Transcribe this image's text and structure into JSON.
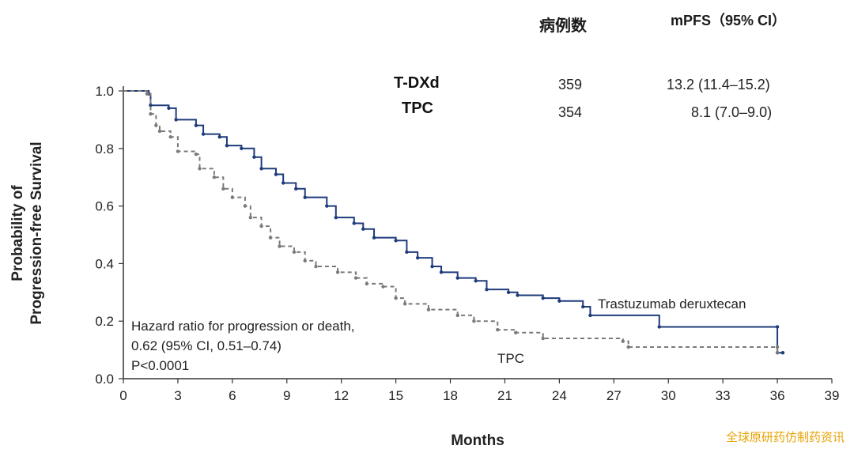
{
  "header": {
    "n_label": "病例数",
    "mpfs_label": "mPFS（95% CI）"
  },
  "arms": [
    {
      "name": "T-DXd",
      "n": "359",
      "mpfs": "13.2 (11.4–15.2)"
    },
    {
      "name": "TPC",
      "n": "354",
      "mpfs": "8.1 (7.0–9.0)"
    }
  ],
  "hazard_ratio": {
    "line1": "Hazard ratio for progression or death,",
    "line2": "0.62 (95% CI, 0.51–0.74)",
    "line3": "P<0.0001"
  },
  "watermark": "全球原研药仿制药资讯",
  "chart_data": {
    "type": "line",
    "title": "",
    "xlabel": "Months",
    "ylabel_line1": "Probability of",
    "ylabel_line2": "Progression-free Survival",
    "xlim": [
      0,
      39
    ],
    "ylim": [
      0,
      1.0
    ],
    "x_ticks": [
      "0",
      "3",
      "6",
      "9",
      "12",
      "15",
      "18",
      "21",
      "24",
      "27",
      "30",
      "33",
      "36",
      "39"
    ],
    "y_ticks": [
      "0.0",
      "0.2",
      "0.4",
      "0.6",
      "0.8",
      "1.0"
    ],
    "series": [
      {
        "name": "Trastuzumab deruxtecan",
        "color": "#1f3b7a",
        "style": "solid",
        "points": [
          [
            0,
            1.0
          ],
          [
            1.4,
            0.99
          ],
          [
            1.5,
            0.95
          ],
          [
            2.5,
            0.94
          ],
          [
            2.9,
            0.9
          ],
          [
            4.0,
            0.88
          ],
          [
            4.4,
            0.85
          ],
          [
            5.3,
            0.84
          ],
          [
            5.7,
            0.81
          ],
          [
            6.5,
            0.8
          ],
          [
            7.2,
            0.77
          ],
          [
            7.6,
            0.73
          ],
          [
            8.4,
            0.71
          ],
          [
            8.8,
            0.68
          ],
          [
            9.5,
            0.66
          ],
          [
            10.0,
            0.63
          ],
          [
            11.2,
            0.6
          ],
          [
            11.7,
            0.56
          ],
          [
            12.7,
            0.54
          ],
          [
            13.2,
            0.52
          ],
          [
            13.8,
            0.49
          ],
          [
            15.0,
            0.48
          ],
          [
            15.6,
            0.44
          ],
          [
            16.2,
            0.42
          ],
          [
            17.0,
            0.39
          ],
          [
            17.5,
            0.37
          ],
          [
            18.4,
            0.35
          ],
          [
            19.4,
            0.34
          ],
          [
            20.0,
            0.31
          ],
          [
            21.2,
            0.3
          ],
          [
            21.7,
            0.29
          ],
          [
            23.1,
            0.28
          ],
          [
            24.0,
            0.27
          ],
          [
            25.3,
            0.25
          ],
          [
            25.7,
            0.22
          ],
          [
            29.5,
            0.18
          ],
          [
            36.0,
            0.18
          ],
          [
            36.0,
            0.09
          ],
          [
            36.3,
            0.09
          ]
        ],
        "label_text": "Trastuzumab deruxtecan"
      },
      {
        "name": "TPC",
        "color": "#7a7a7a",
        "style": "dashed",
        "points": [
          [
            0,
            1.0
          ],
          [
            1.3,
            0.99
          ],
          [
            1.5,
            0.92
          ],
          [
            1.8,
            0.88
          ],
          [
            2.0,
            0.86
          ],
          [
            2.6,
            0.84
          ],
          [
            3.0,
            0.79
          ],
          [
            4.0,
            0.78
          ],
          [
            4.2,
            0.73
          ],
          [
            5.0,
            0.7
          ],
          [
            5.5,
            0.66
          ],
          [
            6.0,
            0.63
          ],
          [
            6.7,
            0.6
          ],
          [
            7.0,
            0.56
          ],
          [
            7.6,
            0.53
          ],
          [
            8.1,
            0.49
          ],
          [
            8.6,
            0.46
          ],
          [
            9.4,
            0.44
          ],
          [
            10.0,
            0.41
          ],
          [
            10.6,
            0.39
          ],
          [
            11.8,
            0.37
          ],
          [
            12.8,
            0.35
          ],
          [
            13.4,
            0.33
          ],
          [
            14.3,
            0.32
          ],
          [
            15.0,
            0.28
          ],
          [
            15.5,
            0.26
          ],
          [
            16.8,
            0.24
          ],
          [
            18.4,
            0.22
          ],
          [
            19.3,
            0.2
          ],
          [
            20.6,
            0.17
          ],
          [
            21.6,
            0.16
          ],
          [
            23.1,
            0.14
          ],
          [
            27.5,
            0.13
          ],
          [
            27.8,
            0.11
          ],
          [
            36.0,
            0.11
          ],
          [
            36.0,
            0.09
          ]
        ],
        "label_text": "TPC"
      }
    ]
  }
}
